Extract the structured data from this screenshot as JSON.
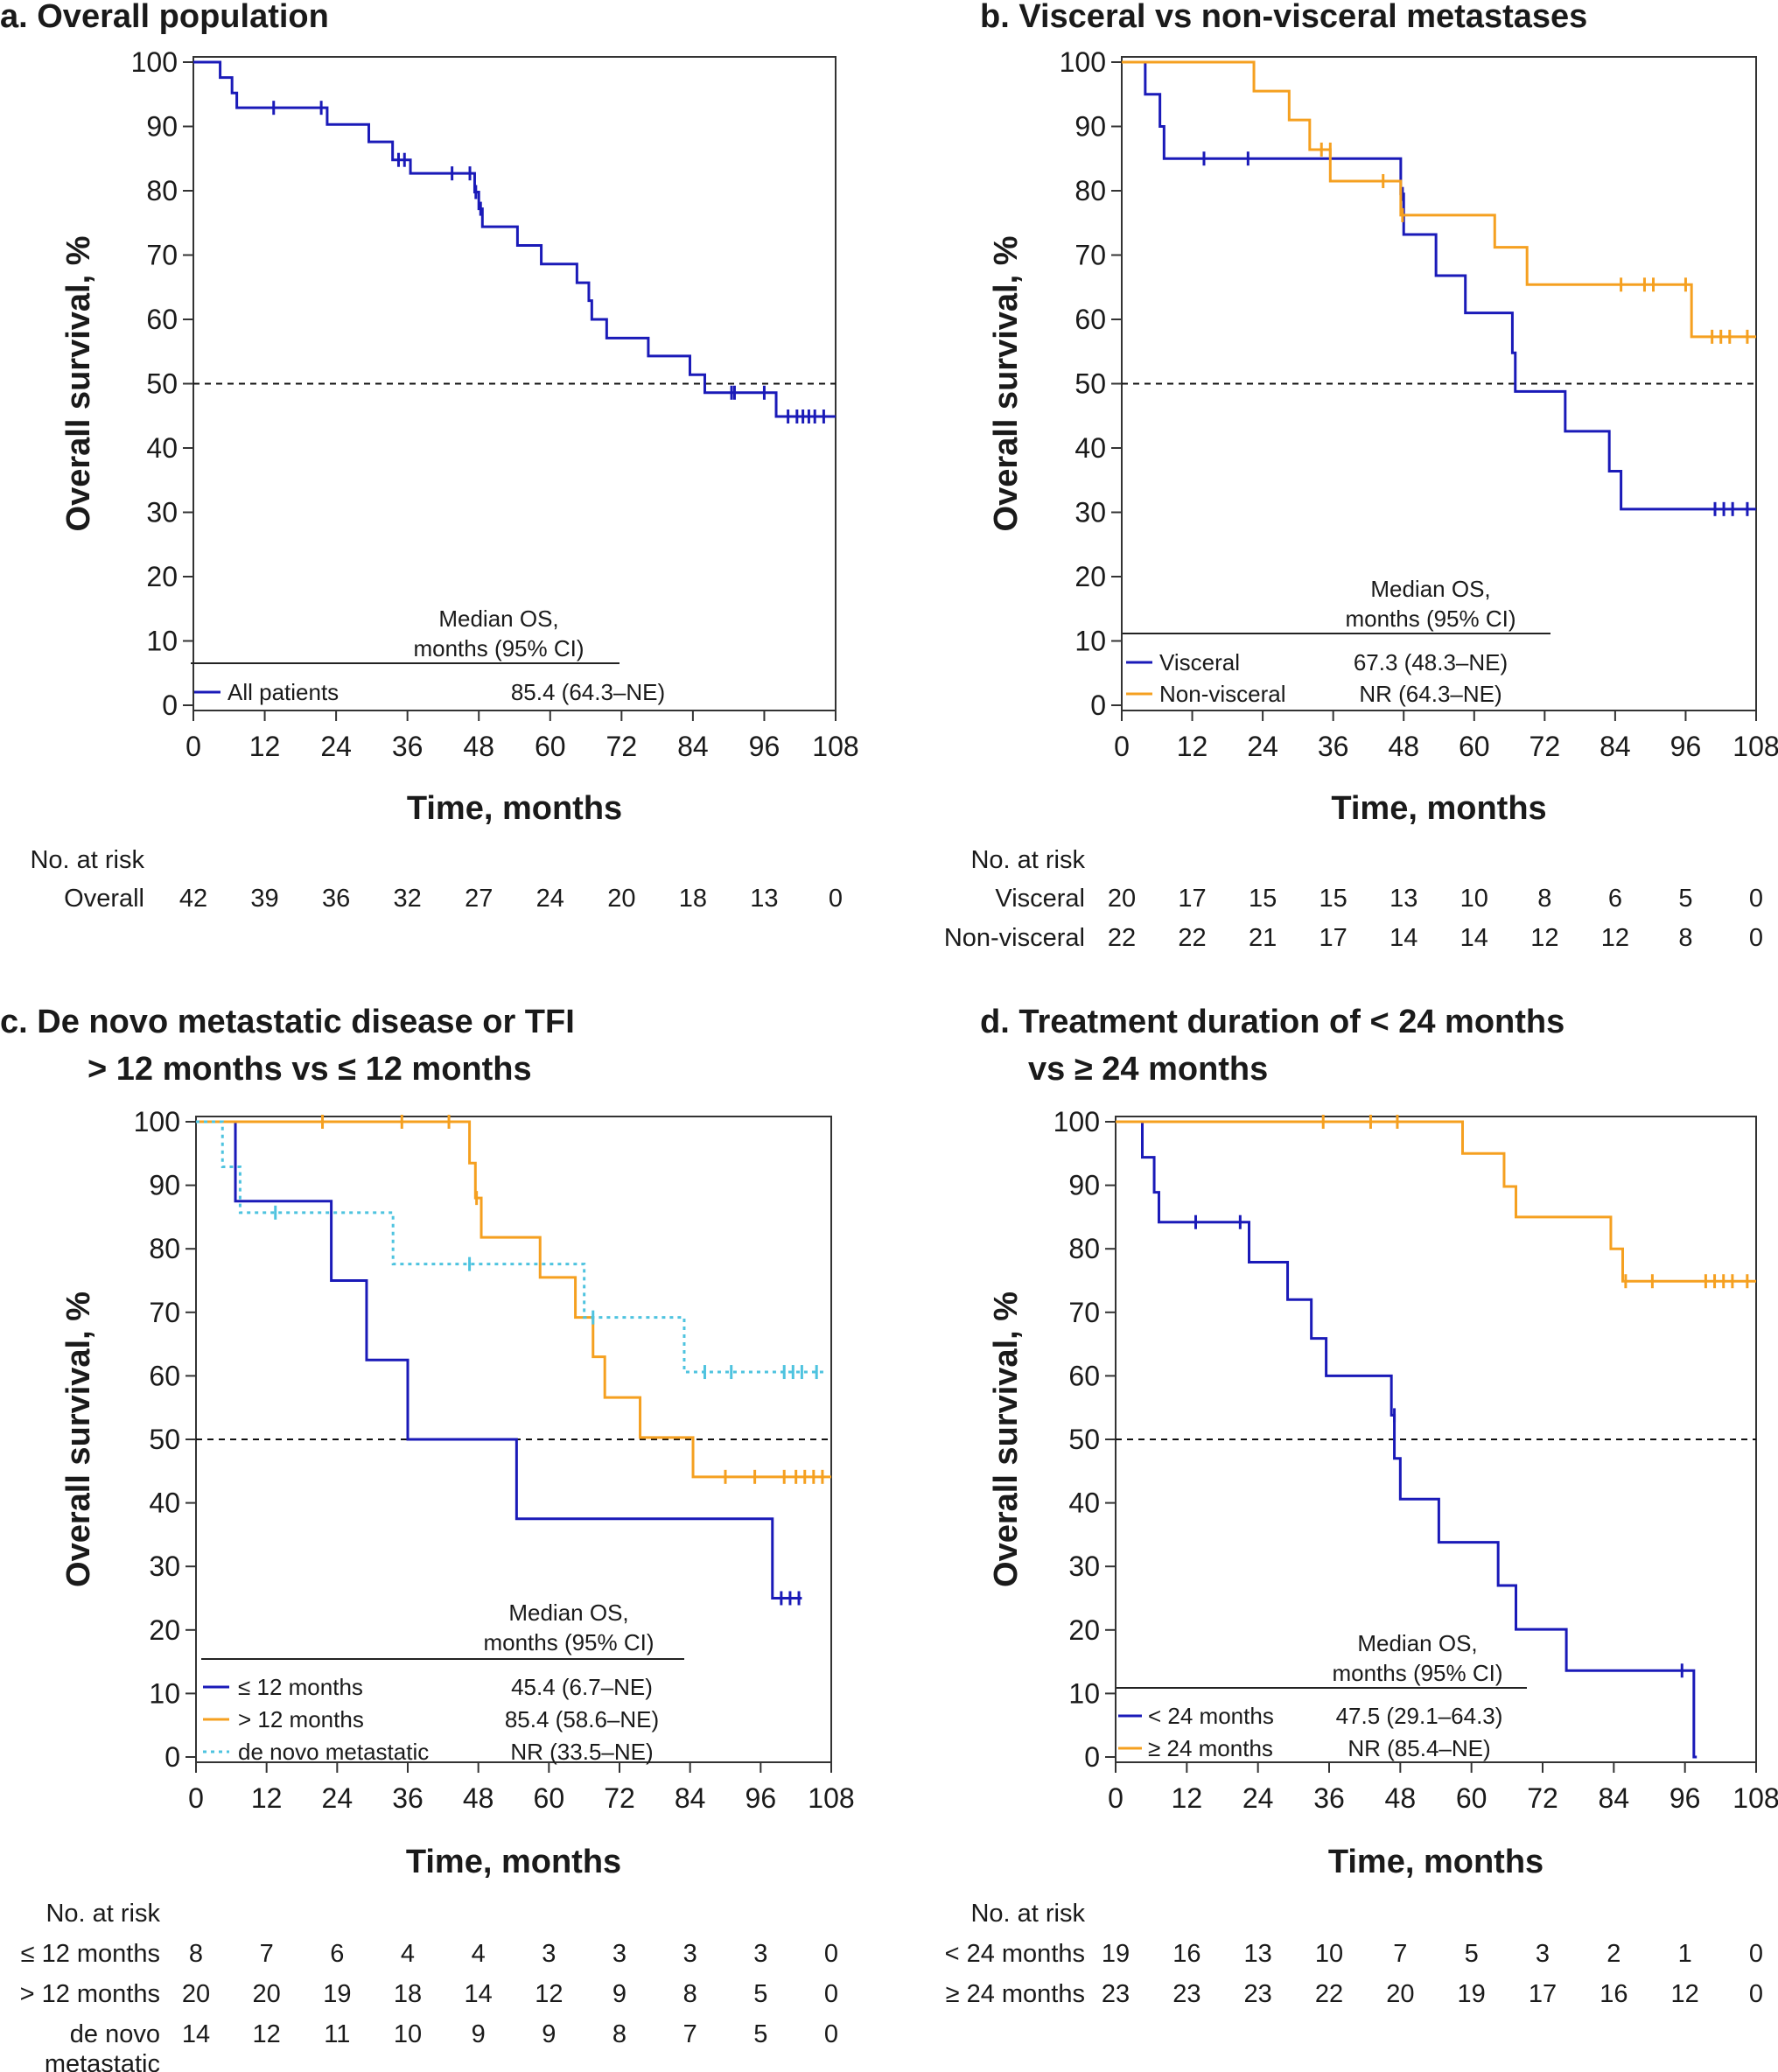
{
  "colors": {
    "blue": "#1a1ab8",
    "orange": "#f5a020",
    "cyan": "#4ec3df",
    "text": "#1a1a1a"
  },
  "common": {
    "ylabel": "Overall survival, %",
    "xlabel": "Time, months",
    "x_ticks": [
      0,
      12,
      24,
      36,
      48,
      60,
      72,
      84,
      96,
      108
    ],
    "y_ticks": [
      0,
      10,
      20,
      30,
      40,
      50,
      60,
      70,
      80,
      90,
      100
    ],
    "risk_header": "No. at risk",
    "legend_header_line1": "Median OS,",
    "legend_header_line2": "months (95% CI)"
  },
  "chart_data": [
    {
      "id": "a",
      "type": "line",
      "title": "a. Overall population",
      "xlim": [
        0,
        108
      ],
      "ylim": [
        0,
        100
      ],
      "reference_line_y": 50,
      "series": [
        {
          "name": "All patients",
          "color_key": "blue",
          "dashed": false,
          "median_os": "85.4 (64.3–NE)",
          "steps": [
            [
              0,
              100
            ],
            [
              4.5,
              97.6
            ],
            [
              6.5,
              95.2
            ],
            [
              7.3,
              92.9
            ],
            [
              22.5,
              90.3
            ],
            [
              29.5,
              87.6
            ],
            [
              33.5,
              84.8
            ],
            [
              36.5,
              82.7
            ],
            [
              47.3,
              79.8
            ],
            [
              48.0,
              77.2
            ],
            [
              48.6,
              74.4
            ],
            [
              54.5,
              71.5
            ],
            [
              58.5,
              68.6
            ],
            [
              64.5,
              65.7
            ],
            [
              66.5,
              62.9
            ],
            [
              67.0,
              60.0
            ],
            [
              69.5,
              57.1
            ],
            [
              76.5,
              54.3
            ],
            [
              83.5,
              51.4
            ],
            [
              86.0,
              48.6
            ],
            [
              98.0,
              44.9
            ],
            [
              108,
              44.9
            ]
          ],
          "censors": [
            [
              13.5,
              92.9
            ],
            [
              21.5,
              92.9
            ],
            [
              34.5,
              84.8
            ],
            [
              35.5,
              84.8
            ],
            [
              43.5,
              82.7
            ],
            [
              46.5,
              82.7
            ],
            [
              47.5,
              79.8
            ],
            [
              48.3,
              77.2
            ],
            [
              90.5,
              48.6
            ],
            [
              91.0,
              48.6
            ],
            [
              96.0,
              48.6
            ],
            [
              100.0,
              44.9
            ],
            [
              101.5,
              44.9
            ],
            [
              102.5,
              44.9
            ],
            [
              103.5,
              44.9
            ],
            [
              104.5,
              44.9
            ],
            [
              106.0,
              44.9
            ]
          ]
        }
      ],
      "risk_rows": [
        {
          "label": "Overall",
          "values": [
            "42",
            "39",
            "36",
            "32",
            "27",
            "24",
            "20",
            "18",
            "13",
            "0"
          ]
        }
      ]
    },
    {
      "id": "b",
      "type": "line",
      "title": "b. Visceral vs non-visceral metastases",
      "xlim": [
        0,
        108
      ],
      "ylim": [
        0,
        100
      ],
      "reference_line_y": 50,
      "series": [
        {
          "name": "Visceral",
          "color_key": "blue",
          "dashed": false,
          "median_os": "67.3 (48.3–NE)",
          "steps": [
            [
              0,
              100
            ],
            [
              4.0,
              95.0
            ],
            [
              6.5,
              90.0
            ],
            [
              7.2,
              85.0
            ],
            [
              47.5,
              79.5
            ],
            [
              48.0,
              73.2
            ],
            [
              53.5,
              66.8
            ],
            [
              58.5,
              61.0
            ],
            [
              66.5,
              54.8
            ],
            [
              67.0,
              48.8
            ],
            [
              75.5,
              42.6
            ],
            [
              83.0,
              36.4
            ],
            [
              85.0,
              30.5
            ],
            [
              108,
              30.5
            ]
          ],
          "censors": [
            [
              14.0,
              85.0
            ],
            [
              21.5,
              85.0
            ],
            [
              47.8,
              79.5
            ],
            [
              101.0,
              30.5
            ],
            [
              102.5,
              30.5
            ],
            [
              104.0,
              30.5
            ],
            [
              106.5,
              30.5
            ]
          ]
        },
        {
          "name": "Non-visceral",
          "color_key": "orange",
          "dashed": false,
          "median_os": "NR (64.3–NE)",
          "steps": [
            [
              0,
              100
            ],
            [
              22.5,
              95.5
            ],
            [
              28.5,
              91.0
            ],
            [
              32.0,
              86.4
            ],
            [
              35.5,
              81.5
            ],
            [
              47.5,
              76.2
            ],
            [
              63.5,
              71.2
            ],
            [
              69.0,
              65.4
            ],
            [
              97.0,
              57.3
            ],
            [
              108,
              57.3
            ]
          ],
          "censors": [
            [
              34.0,
              86.4
            ],
            [
              35.5,
              86.4
            ],
            [
              44.5,
              81.5
            ],
            [
              47.8,
              76.2
            ],
            [
              85.0,
              65.4
            ],
            [
              89.0,
              65.4
            ],
            [
              90.5,
              65.4
            ],
            [
              96.0,
              65.4
            ],
            [
              100.5,
              57.3
            ],
            [
              102.0,
              57.3
            ],
            [
              103.5,
              57.3
            ],
            [
              106.5,
              57.3
            ]
          ]
        }
      ],
      "risk_rows": [
        {
          "label": "Visceral",
          "values": [
            "20",
            "17",
            "15",
            "15",
            "13",
            "10",
            "8",
            "6",
            "5",
            "0"
          ]
        },
        {
          "label": "Non-visceral",
          "values": [
            "22",
            "22",
            "21",
            "17",
            "14",
            "14",
            "12",
            "12",
            "8",
            "0"
          ]
        }
      ]
    },
    {
      "id": "c",
      "type": "line",
      "title": "c. De novo metastatic disease or TFI",
      "title_line2": "> 12 months vs ≤ 12 months",
      "xlim": [
        0,
        108
      ],
      "ylim": [
        0,
        100
      ],
      "reference_line_y": 50,
      "series": [
        {
          "name": "≤ 12 months",
          "color_key": "blue",
          "dashed": false,
          "median_os": "45.4 (6.7–NE)",
          "steps": [
            [
              0,
              100
            ],
            [
              6.7,
              87.5
            ],
            [
              23.0,
              75.0
            ],
            [
              29.0,
              62.5
            ],
            [
              36.0,
              50.0
            ],
            [
              54.5,
              37.5
            ],
            [
              98.0,
              25.0
            ],
            [
              103,
              25.0
            ]
          ],
          "censors": [
            [
              99.5,
              25.0
            ],
            [
              101.0,
              25.0
            ],
            [
              102.5,
              25.0
            ]
          ]
        },
        {
          "name": "> 12 months",
          "color_key": "orange",
          "dashed": false,
          "median_os": "85.4 (58.6–NE)",
          "steps": [
            [
              0,
              100
            ],
            [
              46.5,
              93.5
            ],
            [
              47.5,
              88.0
            ],
            [
              48.5,
              81.8
            ],
            [
              58.5,
              75.5
            ],
            [
              64.5,
              69.2
            ],
            [
              67.5,
              63.0
            ],
            [
              69.5,
              56.6
            ],
            [
              75.5,
              50.3
            ],
            [
              84.5,
              44.1
            ],
            [
              108,
              44.1
            ]
          ],
          "censors": [
            [
              21.5,
              100
            ],
            [
              35.0,
              100
            ],
            [
              43.0,
              100
            ],
            [
              47.7,
              88.0
            ],
            [
              90.0,
              44.1
            ],
            [
              95.0,
              44.1
            ],
            [
              100.0,
              44.1
            ],
            [
              102.0,
              44.1
            ],
            [
              103.5,
              44.1
            ],
            [
              105.0,
              44.1
            ],
            [
              106.5,
              44.1
            ]
          ]
        },
        {
          "name": "de novo metastatic",
          "color_key": "cyan",
          "dashed": true,
          "median_os": "NR (33.5–NE)",
          "steps": [
            [
              0,
              100
            ],
            [
              4.5,
              92.9
            ],
            [
              7.5,
              85.7
            ],
            [
              33.5,
              77.6
            ],
            [
              66.0,
              69.2
            ],
            [
              83.0,
              60.6
            ],
            [
              107,
              60.6
            ]
          ],
          "censors": [
            [
              13.5,
              85.7
            ],
            [
              46.5,
              77.6
            ],
            [
              67.5,
              69.2
            ],
            [
              86.5,
              60.6
            ],
            [
              91.0,
              60.6
            ],
            [
              100.0,
              60.6
            ],
            [
              101.5,
              60.6
            ],
            [
              103.0,
              60.6
            ],
            [
              105.5,
              60.6
            ]
          ]
        }
      ],
      "risk_rows": [
        {
          "label": "≤ 12 months",
          "values": [
            "8",
            "7",
            "6",
            "4",
            "4",
            "3",
            "3",
            "3",
            "3",
            "0"
          ]
        },
        {
          "label": "> 12 months",
          "values": [
            "20",
            "20",
            "19",
            "18",
            "14",
            "12",
            "9",
            "8",
            "5",
            "0"
          ]
        },
        {
          "label": "de novo",
          "label_line2": "metastatic",
          "values": [
            "14",
            "12",
            "11",
            "10",
            "9",
            "9",
            "8",
            "7",
            "5",
            "0"
          ]
        }
      ]
    },
    {
      "id": "d",
      "type": "line",
      "title": "d. Treatment duration of < 24 months",
      "title_line2": "vs ≥ 24 months",
      "xlim": [
        0,
        108
      ],
      "ylim": [
        0,
        100
      ],
      "reference_line_y": 50,
      "series": [
        {
          "name": "< 24 months",
          "color_key": "blue",
          "dashed": false,
          "median_os": "47.5 (29.1–64.3)",
          "steps": [
            [
              0,
              100
            ],
            [
              4.5,
              94.4
            ],
            [
              6.5,
              88.9
            ],
            [
              7.3,
              84.2
            ],
            [
              22.5,
              77.9
            ],
            [
              29.0,
              72.0
            ],
            [
              33.0,
              65.9
            ],
            [
              35.5,
              60.0
            ],
            [
              46.5,
              53.8
            ],
            [
              47.0,
              47.0
            ],
            [
              48.0,
              40.6
            ],
            [
              54.5,
              33.8
            ],
            [
              64.5,
              27.0
            ],
            [
              67.5,
              20.1
            ],
            [
              76.0,
              13.6
            ],
            [
              97.5,
              0
            ],
            [
              98,
              0
            ]
          ],
          "censors": [
            [
              13.5,
              84.2
            ],
            [
              21.0,
              84.2
            ],
            [
              47.0,
              53.8
            ],
            [
              95.5,
              13.6
            ]
          ]
        },
        {
          "name": "≥ 24 months",
          "color_key": "orange",
          "dashed": false,
          "median_os": "NR (85.4–NE)",
          "steps": [
            [
              0,
              100
            ],
            [
              58.5,
              95.0
            ],
            [
              65.5,
              89.8
            ],
            [
              67.5,
              85.0
            ],
            [
              83.5,
              80.0
            ],
            [
              85.5,
              74.9
            ],
            [
              108,
              74.9
            ]
          ],
          "censors": [
            [
              35.0,
              100
            ],
            [
              43.0,
              100
            ],
            [
              47.5,
              100
            ],
            [
              86.0,
              74.9
            ],
            [
              90.5,
              74.9
            ],
            [
              99.5,
              74.9
            ],
            [
              101.0,
              74.9
            ],
            [
              102.5,
              74.9
            ],
            [
              104.0,
              74.9
            ],
            [
              106.5,
              74.9
            ]
          ]
        }
      ],
      "risk_rows": [
        {
          "label": "< 24 months",
          "values": [
            "19",
            "16",
            "13",
            "10",
            "7",
            "5",
            "3",
            "2",
            "1",
            "0"
          ]
        },
        {
          "label": "≥ 24 months",
          "values": [
            "23",
            "23",
            "23",
            "22",
            "20",
            "19",
            "17",
            "16",
            "12",
            "0"
          ]
        }
      ]
    }
  ]
}
